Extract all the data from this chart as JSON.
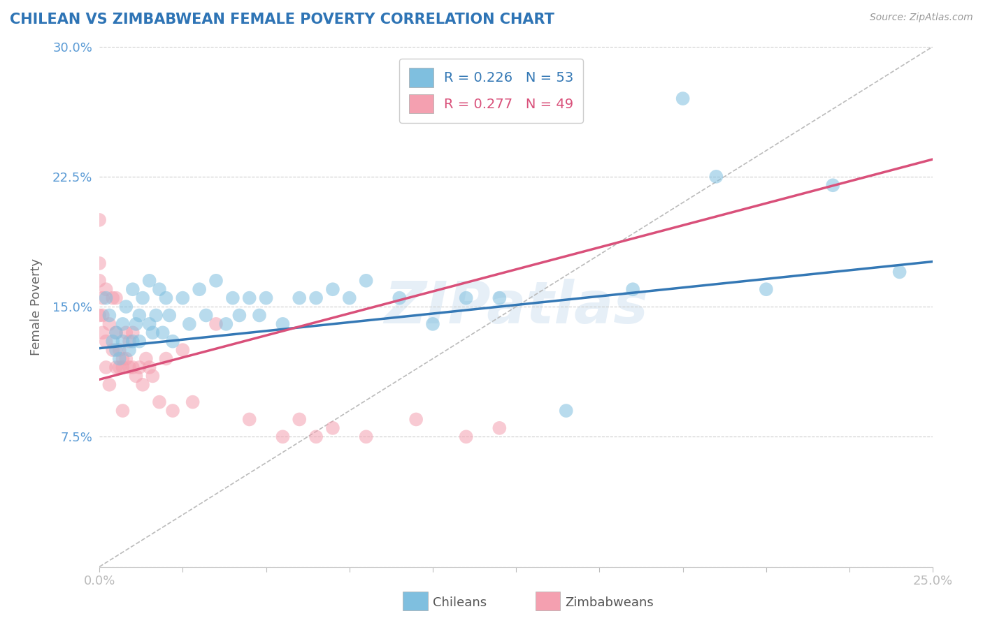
{
  "title": "CHILEAN VS ZIMBABWEAN FEMALE POVERTY CORRELATION CHART",
  "source": "Source: ZipAtlas.com",
  "ylabel": "Female Poverty",
  "xlim": [
    0,
    0.25
  ],
  "ylim": [
    0,
    0.3
  ],
  "yticks": [
    0.0,
    0.075,
    0.15,
    0.225,
    0.3
  ],
  "yticklabels": [
    "",
    "7.5%",
    "15.0%",
    "22.5%",
    "30.0%"
  ],
  "xtick_positions": [
    0.0,
    0.025,
    0.05,
    0.075,
    0.1,
    0.125,
    0.15,
    0.175,
    0.2,
    0.225,
    0.25
  ],
  "xticklabels_show": {
    "0.0": "0.0%",
    "0.25": "25.0%"
  },
  "R_chilean": 0.226,
  "N_chilean": 53,
  "R_zimbabwean": 0.277,
  "N_zimbabwean": 49,
  "chilean_color": "#7fbfdf",
  "zimbabwean_color": "#f4a0b0",
  "chilean_line_color": "#3478b5",
  "zimbabwean_line_color": "#d9507a",
  "diagonal_color": "#bbbbbb",
  "watermark": "ZIPatlas",
  "legend_label_chilean": "Chileans",
  "legend_label_zimbabwean": "Zimbabweans",
  "chilean_x": [
    0.002,
    0.003,
    0.004,
    0.005,
    0.005,
    0.006,
    0.007,
    0.007,
    0.008,
    0.009,
    0.01,
    0.01,
    0.011,
    0.012,
    0.012,
    0.013,
    0.015,
    0.015,
    0.016,
    0.017,
    0.018,
    0.019,
    0.02,
    0.021,
    0.022,
    0.025,
    0.027,
    0.03,
    0.032,
    0.035,
    0.038,
    0.04,
    0.042,
    0.045,
    0.048,
    0.05,
    0.055,
    0.06,
    0.065,
    0.07,
    0.075,
    0.08,
    0.09,
    0.1,
    0.11,
    0.12,
    0.14,
    0.16,
    0.175,
    0.185,
    0.2,
    0.22,
    0.24
  ],
  "chilean_y": [
    0.155,
    0.145,
    0.13,
    0.125,
    0.135,
    0.12,
    0.14,
    0.13,
    0.15,
    0.125,
    0.16,
    0.13,
    0.14,
    0.145,
    0.13,
    0.155,
    0.165,
    0.14,
    0.135,
    0.145,
    0.16,
    0.135,
    0.155,
    0.145,
    0.13,
    0.155,
    0.14,
    0.16,
    0.145,
    0.165,
    0.14,
    0.155,
    0.145,
    0.155,
    0.145,
    0.155,
    0.14,
    0.155,
    0.155,
    0.16,
    0.155,
    0.165,
    0.155,
    0.14,
    0.155,
    0.155,
    0.09,
    0.16,
    0.27,
    0.225,
    0.16,
    0.22,
    0.17
  ],
  "zimbabwean_x": [
    0.0,
    0.0,
    0.0,
    0.0,
    0.001,
    0.001,
    0.001,
    0.002,
    0.002,
    0.002,
    0.003,
    0.003,
    0.004,
    0.004,
    0.005,
    0.005,
    0.005,
    0.006,
    0.006,
    0.007,
    0.007,
    0.007,
    0.008,
    0.008,
    0.009,
    0.009,
    0.01,
    0.01,
    0.011,
    0.012,
    0.013,
    0.014,
    0.015,
    0.016,
    0.018,
    0.02,
    0.022,
    0.025,
    0.028,
    0.035,
    0.045,
    0.055,
    0.06,
    0.065,
    0.07,
    0.08,
    0.095,
    0.11,
    0.12
  ],
  "zimbabwean_y": [
    0.2,
    0.175,
    0.165,
    0.145,
    0.135,
    0.145,
    0.155,
    0.13,
    0.115,
    0.16,
    0.14,
    0.105,
    0.155,
    0.125,
    0.155,
    0.135,
    0.115,
    0.125,
    0.115,
    0.12,
    0.115,
    0.09,
    0.135,
    0.12,
    0.13,
    0.115,
    0.135,
    0.115,
    0.11,
    0.115,
    0.105,
    0.12,
    0.115,
    0.11,
    0.095,
    0.12,
    0.09,
    0.125,
    0.095,
    0.14,
    0.085,
    0.075,
    0.085,
    0.075,
    0.08,
    0.075,
    0.085,
    0.075,
    0.08
  ],
  "chilean_trend_x0": 0.0,
  "chilean_trend_x1": 0.25,
  "chilean_trend_y0": 0.126,
  "chilean_trend_y1": 0.176,
  "zimbabwean_trend_x0": 0.0,
  "zimbabwean_trend_x1": 0.25,
  "zimbabwean_trend_y0": 0.108,
  "zimbabwean_trend_y1": 0.235
}
